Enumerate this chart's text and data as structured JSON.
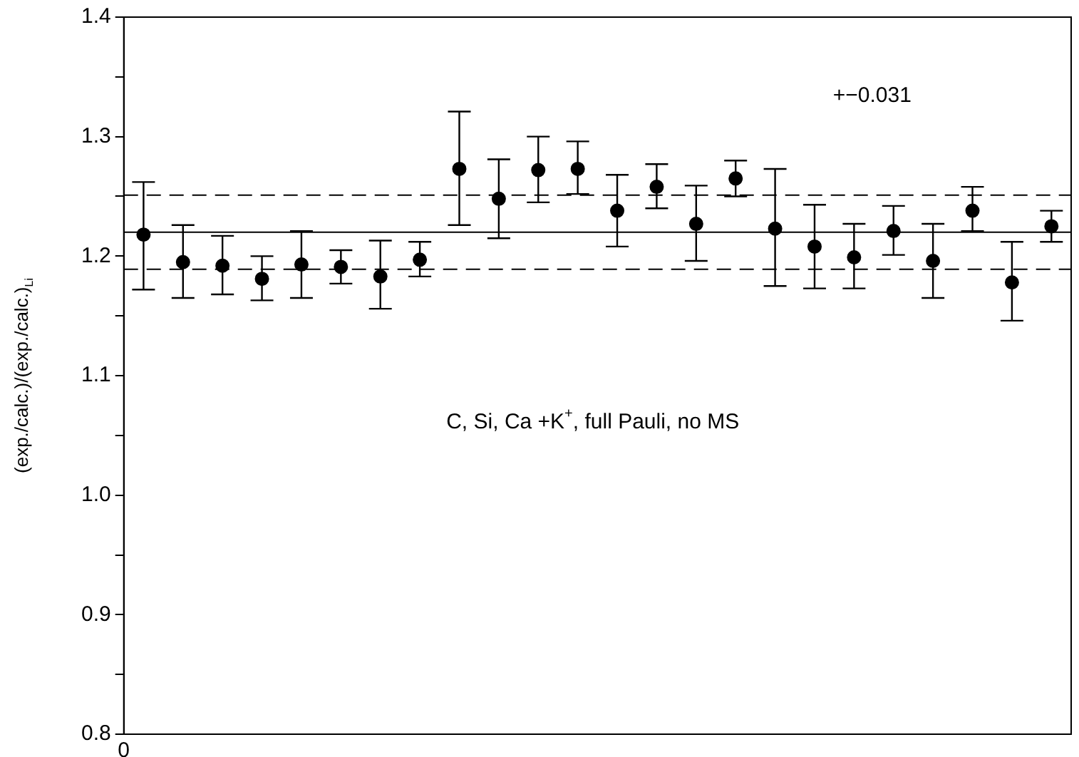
{
  "chart_data": {
    "type": "scatter",
    "ylabel": "(exp./calc.)/(exp./calc.)$_{Li}$",
    "categories": [
      null,
      null,
      null,
      null,
      null,
      null,
      null,
      null,
      null,
      null,
      null,
      null,
      null,
      null,
      null,
      null,
      null,
      null,
      null,
      null,
      null,
      null,
      null,
      null
    ],
    "values": [
      1.218,
      1.195,
      1.192,
      1.181,
      1.193,
      1.191,
      1.183,
      1.197,
      1.273,
      1.248,
      1.272,
      1.273,
      1.238,
      1.258,
      1.227,
      1.265,
      1.223,
      1.208,
      1.199,
      1.221,
      1.196,
      1.238,
      1.178,
      1.225
    ],
    "errors": [
      [
        1.172,
        1.262
      ],
      [
        1.165,
        1.226
      ],
      [
        1.168,
        1.217
      ],
      [
        1.163,
        1.2
      ],
      [
        1.165,
        1.221
      ],
      [
        1.177,
        1.205
      ],
      [
        1.156,
        1.213
      ],
      [
        1.183,
        1.212
      ],
      [
        1.226,
        1.321
      ],
      [
        1.215,
        1.281
      ],
      [
        1.245,
        1.3
      ],
      [
        1.252,
        1.296
      ],
      [
        1.208,
        1.268
      ],
      [
        1.24,
        1.277
      ],
      [
        1.196,
        1.259
      ],
      [
        1.25,
        1.28
      ],
      [
        1.175,
        1.273
      ],
      [
        1.173,
        1.243
      ],
      [
        1.173,
        1.227
      ],
      [
        1.201,
        1.242
      ],
      [
        1.165,
        1.227
      ],
      [
        1.221,
        1.258
      ],
      [
        1.146,
        1.212
      ],
      [
        1.212,
        1.238
      ]
    ],
    "color": "#000000",
    "marker": "circle",
    "ylim": [
      0.8,
      1.4
    ],
    "yticks": [
      0.8,
      {
        "value": 0.85,
        "label": null
      },
      0.9,
      {
        "value": 0.95,
        "label": null
      },
      {
        "value": 1,
        "label": "1.0"
      },
      {
        "value": 1.05,
        "label": null
      },
      1.1,
      {
        "value": 1.15,
        "label": null
      },
      1.2,
      {
        "value": 1.25,
        "label": null
      },
      1.3,
      {
        "value": 1.35,
        "label": null
      },
      1.4
    ],
    "ref_lines": [
      {
        "axis": "y",
        "value": 1.22,
        "line_style": "solid"
      },
      {
        "axis": "y",
        "value": 1.251,
        "line_style": "dashed"
      },
      {
        "axis": "y",
        "value": 1.189,
        "line_style": "dashed"
      }
    ],
    "annotations": [
      "+−0.031",
      "C, Si, Ca +K$^{+}$, full Pauli, no MS",
      "0"
    ],
    "grid": false,
    "legend": false
  }
}
